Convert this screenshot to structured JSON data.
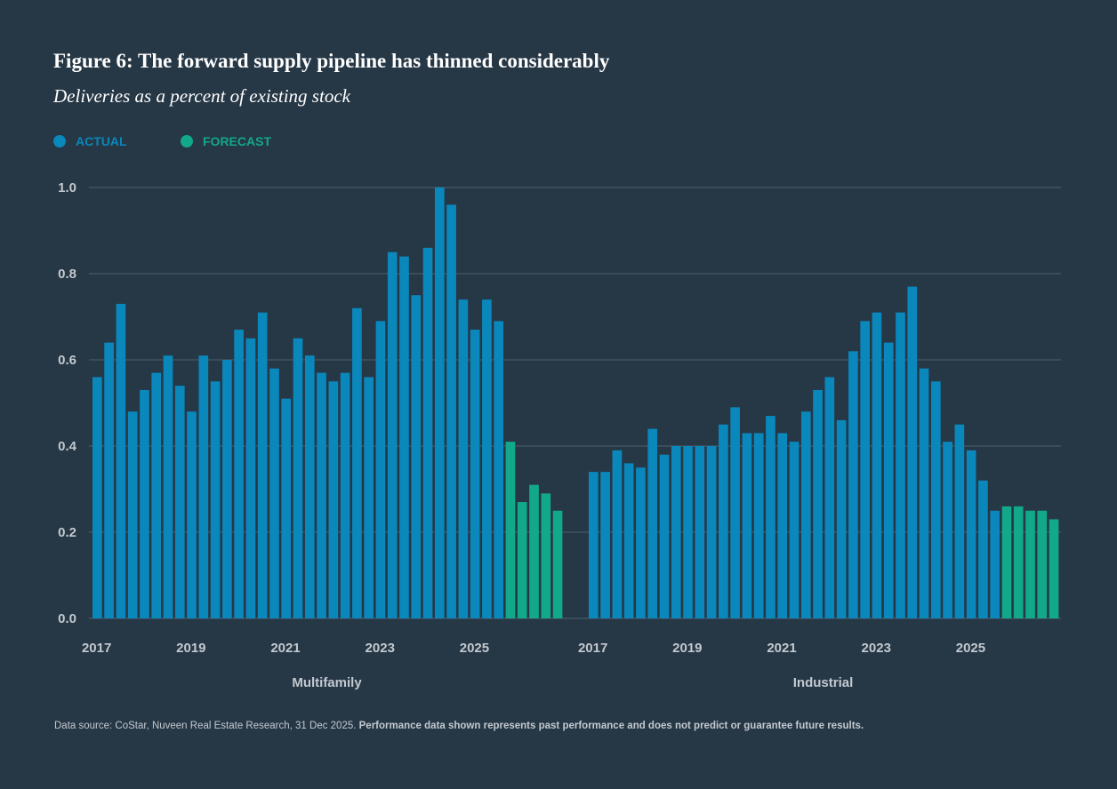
{
  "chart_data": {
    "type": "bar",
    "title": "Figure 6: The forward supply pipeline has thinned considerably",
    "subtitle": "Deliveries as a percent of existing stock",
    "legend": [
      {
        "name": "ACTUAL",
        "color": "#0a87bb"
      },
      {
        "name": "FORECAST",
        "color": "#12a88a"
      }
    ],
    "ylim": [
      0,
      1
    ],
    "yticks": [
      {
        "value": 0,
        "label": "0.0"
      },
      0.2,
      0.4,
      0.6,
      0.8,
      {
        "value": 1,
        "label": "1.0"
      }
    ],
    "grid": true,
    "panels": [
      {
        "xlabel": "Multifamily",
        "categories": [
          "2017",
          null,
          null,
          null,
          null,
          null,
          null,
          null,
          "2019",
          null,
          null,
          null,
          null,
          null,
          null,
          null,
          "2021",
          null,
          null,
          null,
          null,
          null,
          null,
          null,
          "2023",
          null,
          null,
          null,
          null,
          null,
          null,
          null,
          "2025",
          null,
          null,
          null,
          null,
          null,
          null,
          null
        ],
        "series": [
          {
            "values": [
              0.56,
              0.64,
              0.73,
              0.48,
              0.53,
              0.57,
              0.61,
              0.54,
              0.48,
              0.61,
              0.55,
              0.6,
              0.67,
              0.65,
              0.71,
              0.58,
              0.51,
              0.65,
              0.61,
              0.57,
              0.55,
              0.57,
              0.72,
              0.56,
              0.69,
              0.85,
              0.84,
              0.75,
              0.86,
              1.0,
              0.96,
              0.74,
              0.67,
              0.74,
              0.69,
              null,
              null,
              null,
              null,
              null
            ]
          },
          {
            "values": [
              null,
              null,
              null,
              null,
              null,
              null,
              null,
              null,
              null,
              null,
              null,
              null,
              null,
              null,
              null,
              null,
              null,
              null,
              null,
              null,
              null,
              null,
              null,
              null,
              null,
              null,
              null,
              null,
              null,
              null,
              null,
              null,
              null,
              null,
              null,
              0.41,
              0.27,
              0.31,
              0.29,
              0.25
            ]
          }
        ]
      },
      {
        "xlabel": "Industrial",
        "categories": [
          "2017",
          null,
          null,
          null,
          null,
          null,
          null,
          null,
          "2019",
          null,
          null,
          null,
          null,
          null,
          null,
          null,
          "2021",
          null,
          null,
          null,
          null,
          null,
          null,
          null,
          "2023",
          null,
          null,
          null,
          null,
          null,
          null,
          null,
          "2025",
          null,
          null,
          null,
          null,
          null,
          null,
          null
        ],
        "series": [
          {
            "values": [
              0.34,
              0.34,
              0.39,
              0.36,
              0.35,
              0.44,
              0.38,
              0.4,
              0.4,
              0.4,
              0.4,
              0.45,
              0.49,
              0.43,
              0.43,
              0.47,
              0.43,
              0.41,
              0.48,
              0.53,
              0.56,
              0.46,
              0.62,
              0.69,
              0.71,
              0.64,
              0.71,
              0.77,
              0.58,
              0.55,
              0.41,
              0.45,
              0.39,
              0.32,
              0.25,
              null,
              null,
              null,
              null,
              null
            ]
          },
          {
            "values": [
              null,
              null,
              null,
              null,
              null,
              null,
              null,
              null,
              null,
              null,
              null,
              null,
              null,
              null,
              null,
              null,
              null,
              null,
              null,
              null,
              null,
              null,
              null,
              null,
              null,
              null,
              null,
              null,
              null,
              null,
              null,
              null,
              null,
              null,
              null,
              0.26,
              0.26,
              0.25,
              0.25,
              0.23
            ]
          }
        ]
      }
    ],
    "source": "Data source: CoStar, Nuveen Real Estate Research, 31 Dec 2025.",
    "disclaimer": "Performance data shown represents past performance and does not predict or guarantee future results."
  }
}
